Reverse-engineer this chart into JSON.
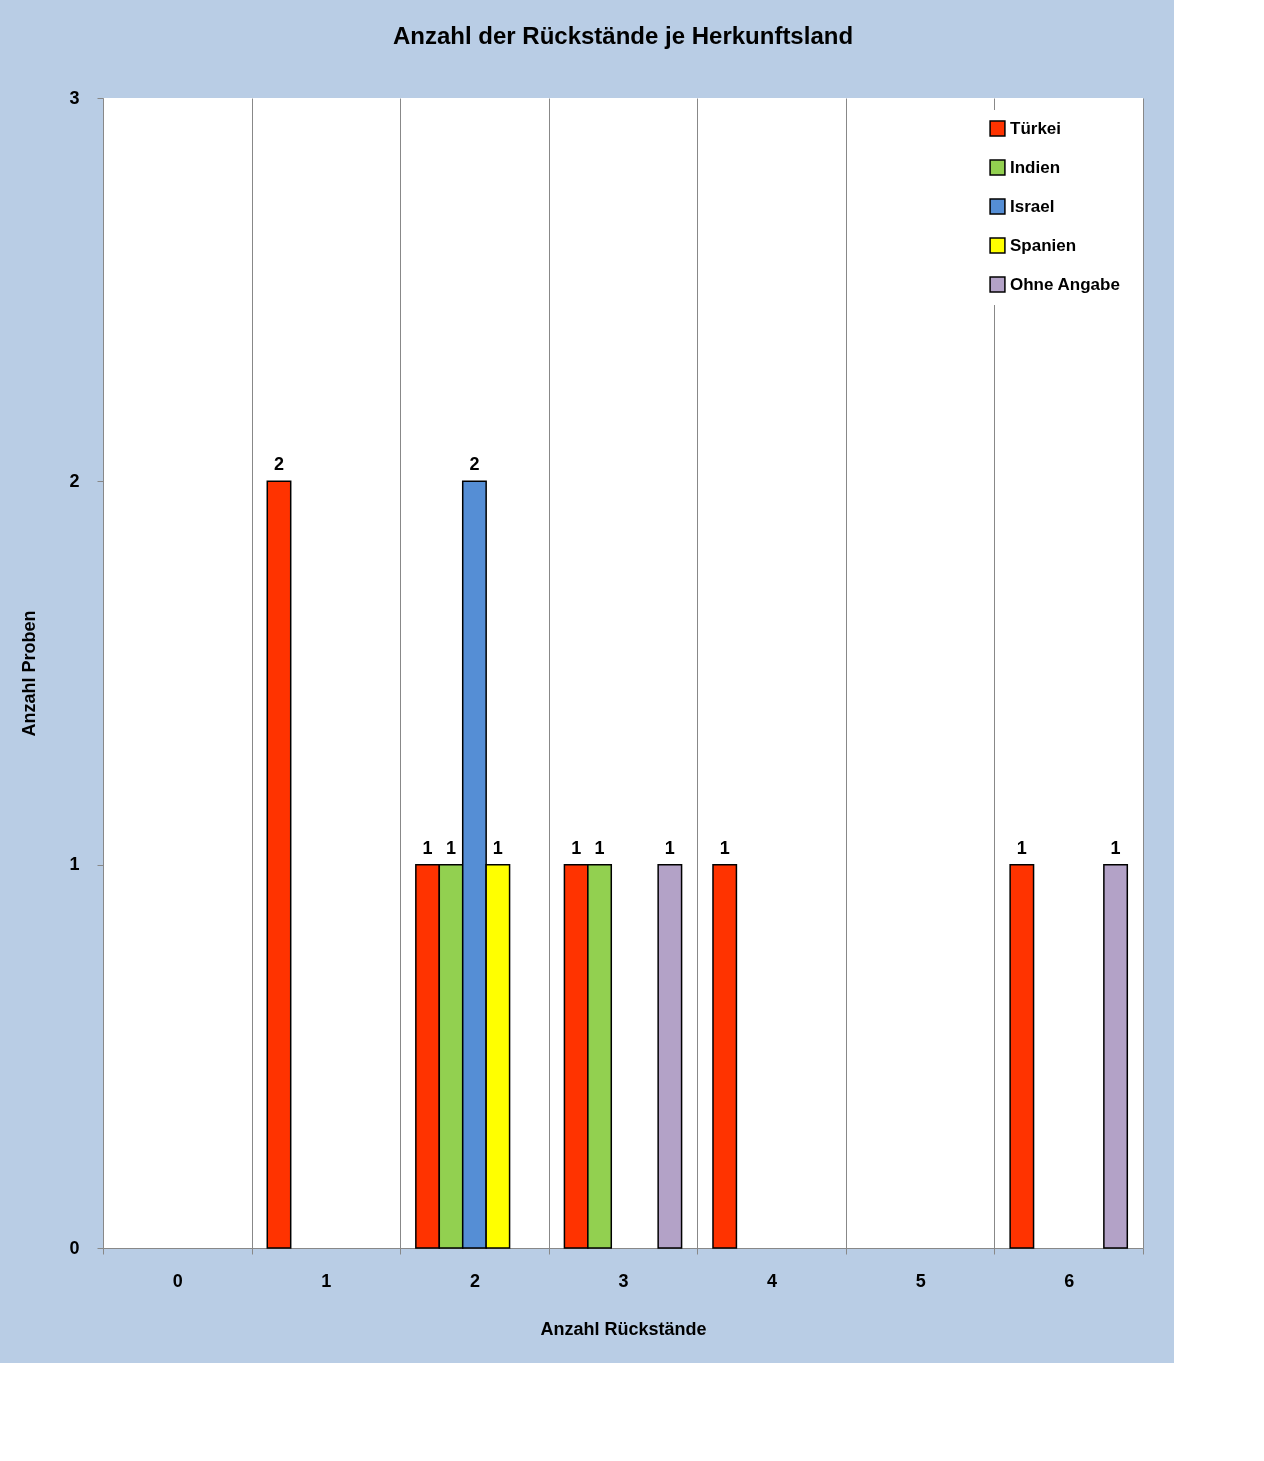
{
  "chart_data": {
    "type": "bar",
    "title": "Anzahl der Rückstände je Herkunftsland",
    "xlabel": "Anzahl Rückstände",
    "ylabel": "Anzahl Proben",
    "categories": [
      "0",
      "1",
      "2",
      "3",
      "4",
      "5",
      "6"
    ],
    "series": [
      {
        "name": "Türkei",
        "color": "#ff3300",
        "values": [
          null,
          2,
          1,
          1,
          1,
          null,
          1
        ]
      },
      {
        "name": "Indien",
        "color": "#92d050",
        "values": [
          null,
          null,
          1,
          1,
          null,
          null,
          null
        ]
      },
      {
        "name": "Israel",
        "color": "#558ed5",
        "values": [
          null,
          null,
          2,
          null,
          null,
          null,
          null
        ]
      },
      {
        "name": "Spanien",
        "color": "#ffff00",
        "values": [
          null,
          null,
          1,
          null,
          null,
          null,
          null
        ]
      },
      {
        "name": "Ohne Angabe",
        "color": "#b3a2c7",
        "values": [
          null,
          null,
          null,
          1,
          null,
          null,
          1
        ]
      }
    ],
    "ylim": [
      0,
      3
    ],
    "yticks": [
      0,
      1,
      2,
      3
    ],
    "grid": "x",
    "legend": "top right",
    "data_labels": true
  }
}
